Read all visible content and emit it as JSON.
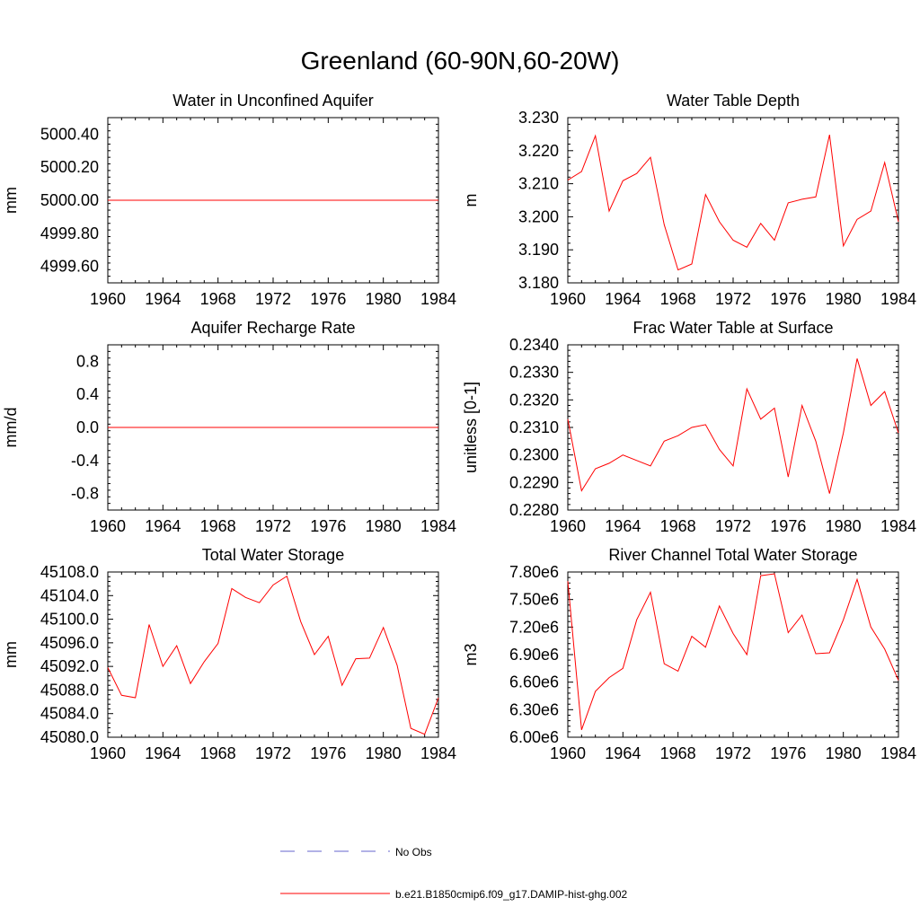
{
  "title": "Greenland (60-90N,60-20W)",
  "colors": {
    "model": "#ff0000",
    "obs": "#6666cc",
    "axis": "#000000"
  },
  "legend": {
    "obs_label": "No Obs",
    "model_label": "b.e21.B1850cmip6.f09_g17.DAMIP-hist-ghg.002"
  },
  "chart_data": [
    {
      "type": "line",
      "title": "Water in Unconfined Aquifer",
      "ylabel": "mm",
      "xlim": [
        1960,
        1984
      ],
      "ylim": [
        4999.5,
        5000.5
      ],
      "xticks": [
        1960,
        1964,
        1968,
        1972,
        1976,
        1980,
        1984
      ],
      "yticks": [
        4999.6,
        4999.8,
        5000.0,
        5000.2,
        5000.4
      ],
      "ytick_labels": [
        "4999.60",
        "4999.80",
        "5000.00",
        "5000.20",
        "5000.40"
      ],
      "x": [
        1960,
        1961,
        1962,
        1963,
        1964,
        1965,
        1966,
        1967,
        1968,
        1969,
        1970,
        1971,
        1972,
        1973,
        1974,
        1975,
        1976,
        1977,
        1978,
        1979,
        1980,
        1981,
        1982,
        1983,
        1984
      ],
      "series": [
        {
          "values": [
            5000,
            5000,
            5000,
            5000,
            5000,
            5000,
            5000,
            5000,
            5000,
            5000,
            5000,
            5000,
            5000,
            5000,
            5000,
            5000,
            5000,
            5000,
            5000,
            5000,
            5000,
            5000,
            5000,
            5000,
            5000
          ]
        }
      ]
    },
    {
      "type": "line",
      "title": "Water Table Depth",
      "ylabel": "m",
      "xlim": [
        1960,
        1984
      ],
      "ylim": [
        3.18,
        3.23
      ],
      "xticks": [
        1960,
        1964,
        1968,
        1972,
        1976,
        1980,
        1984
      ],
      "yticks": [
        3.18,
        3.19,
        3.2,
        3.21,
        3.22,
        3.23
      ],
      "ytick_labels": [
        "3.180",
        "3.190",
        "3.200",
        "3.210",
        "3.220",
        "3.230"
      ],
      "x": [
        1960,
        1961,
        1962,
        1963,
        1964,
        1965,
        1966,
        1967,
        1968,
        1969,
        1970,
        1971,
        1972,
        1973,
        1974,
        1975,
        1976,
        1977,
        1978,
        1979,
        1980,
        1981,
        1982,
        1983,
        1984
      ],
      "series": [
        {
          "values": [
            3.2111,
            3.2137,
            3.2245,
            3.2017,
            3.2109,
            3.2131,
            3.218,
            3.1976,
            3.1839,
            3.1857,
            3.2067,
            3.1985,
            3.1929,
            3.1908,
            3.198,
            3.1929,
            3.2042,
            3.2053,
            3.206,
            3.2248,
            3.1912,
            3.1992,
            3.2017,
            3.2164,
            3.1985
          ]
        }
      ]
    },
    {
      "type": "line",
      "title": "Aquifer Recharge Rate",
      "ylabel": "mm/d",
      "xlim": [
        1960,
        1984
      ],
      "ylim": [
        -1.0,
        1.0
      ],
      "xticks": [
        1960,
        1964,
        1968,
        1972,
        1976,
        1980,
        1984
      ],
      "yticks": [
        -0.8,
        -0.4,
        0.0,
        0.4,
        0.8
      ],
      "ytick_labels": [
        "-0.8",
        "-0.4",
        "0.0",
        "0.4",
        "0.8"
      ],
      "x": [
        1960,
        1961,
        1962,
        1963,
        1964,
        1965,
        1966,
        1967,
        1968,
        1969,
        1970,
        1971,
        1972,
        1973,
        1974,
        1975,
        1976,
        1977,
        1978,
        1979,
        1980,
        1981,
        1982,
        1983,
        1984
      ],
      "series": [
        {
          "values": [
            0,
            0,
            0,
            0,
            0,
            0,
            0,
            0,
            0,
            0,
            0,
            0,
            0,
            0,
            0,
            0,
            0,
            0,
            0,
            0,
            0,
            0,
            0,
            0,
            0
          ]
        }
      ]
    },
    {
      "type": "line",
      "title": "Frac Water Table at Surface",
      "ylabel": "unitless [0-1]",
      "xlim": [
        1960,
        1984
      ],
      "ylim": [
        0.228,
        0.234
      ],
      "xticks": [
        1960,
        1964,
        1968,
        1972,
        1976,
        1980,
        1984
      ],
      "yticks": [
        0.228,
        0.229,
        0.23,
        0.231,
        0.232,
        0.233,
        0.234
      ],
      "ytick_labels": [
        "0.2280",
        "0.2290",
        "0.2300",
        "0.2310",
        "0.2320",
        "0.2330",
        "0.2340"
      ],
      "x": [
        1960,
        1961,
        1962,
        1963,
        1964,
        1965,
        1966,
        1967,
        1968,
        1969,
        1970,
        1971,
        1972,
        1973,
        1974,
        1975,
        1976,
        1977,
        1978,
        1979,
        1980,
        1981,
        1982,
        1983,
        1984
      ],
      "series": [
        {
          "values": [
            0.2313,
            0.2287,
            0.2295,
            0.2297,
            0.23,
            0.2298,
            0.2296,
            0.2305,
            0.2307,
            0.231,
            0.2311,
            0.2302,
            0.2296,
            0.2324,
            0.2313,
            0.2317,
            0.2292,
            0.2318,
            0.2305,
            0.2286,
            0.2308,
            0.2335,
            0.2318,
            0.2323,
            0.2308
          ]
        }
      ]
    },
    {
      "type": "line",
      "title": "Total Water Storage",
      "ylabel": "mm",
      "xlim": [
        1960,
        1984
      ],
      "ylim": [
        45080,
        45108
      ],
      "xticks": [
        1960,
        1964,
        1968,
        1972,
        1976,
        1980,
        1984
      ],
      "yticks": [
        45080,
        45084,
        45088,
        45092,
        45096,
        45100,
        45104,
        45108
      ],
      "ytick_labels": [
        "45080.0",
        "45084.0",
        "45088.0",
        "45092.0",
        "45096.0",
        "45100.0",
        "45104.0",
        "45108.0"
      ],
      "x": [
        1960,
        1961,
        1962,
        1963,
        1964,
        1965,
        1966,
        1967,
        1968,
        1969,
        1970,
        1971,
        1972,
        1973,
        1974,
        1975,
        1976,
        1977,
        1978,
        1979,
        1980,
        1981,
        1982,
        1983,
        1984
      ],
      "series": [
        {
          "values": [
            45091.8,
            45087.1,
            45086.7,
            45099.1,
            45092.0,
            45095.5,
            45089.1,
            45092.8,
            45095.9,
            45105.2,
            45103.7,
            45102.8,
            45105.8,
            45107.3,
            45099.6,
            45094.0,
            45097.1,
            45088.8,
            45093.3,
            45093.4,
            45098.6,
            45092.2,
            45081.5,
            45080.5,
            45086.7
          ]
        }
      ]
    },
    {
      "type": "line",
      "title": "River Channel Total Water Storage",
      "ylabel": "m3",
      "xlim": [
        1960,
        1984
      ],
      "ylim": [
        6000000,
        7800000
      ],
      "xticks": [
        1960,
        1964,
        1968,
        1972,
        1976,
        1980,
        1984
      ],
      "yticks": [
        6000000,
        6300000,
        6600000,
        6900000,
        7200000,
        7500000,
        7800000
      ],
      "ytick_labels": [
        "6.00e6",
        "6.30e6",
        "6.60e6",
        "6.90e6",
        "7.20e6",
        "7.50e6",
        "7.80e6"
      ],
      "x": [
        1960,
        1961,
        1962,
        1963,
        1964,
        1965,
        1966,
        1967,
        1968,
        1969,
        1970,
        1971,
        1972,
        1973,
        1974,
        1975,
        1976,
        1977,
        1978,
        1979,
        1980,
        1981,
        1982,
        1983,
        1984
      ],
      "series": [
        {
          "values": [
            7700000,
            6080000,
            6500000,
            6650000,
            6750000,
            7280000,
            7580000,
            6800000,
            6720000,
            7100000,
            6980000,
            7430000,
            7130000,
            6900000,
            7760000,
            7780000,
            7140000,
            7330000,
            6910000,
            6920000,
            7280000,
            7720000,
            7200000,
            6960000,
            6620000
          ]
        }
      ]
    }
  ]
}
